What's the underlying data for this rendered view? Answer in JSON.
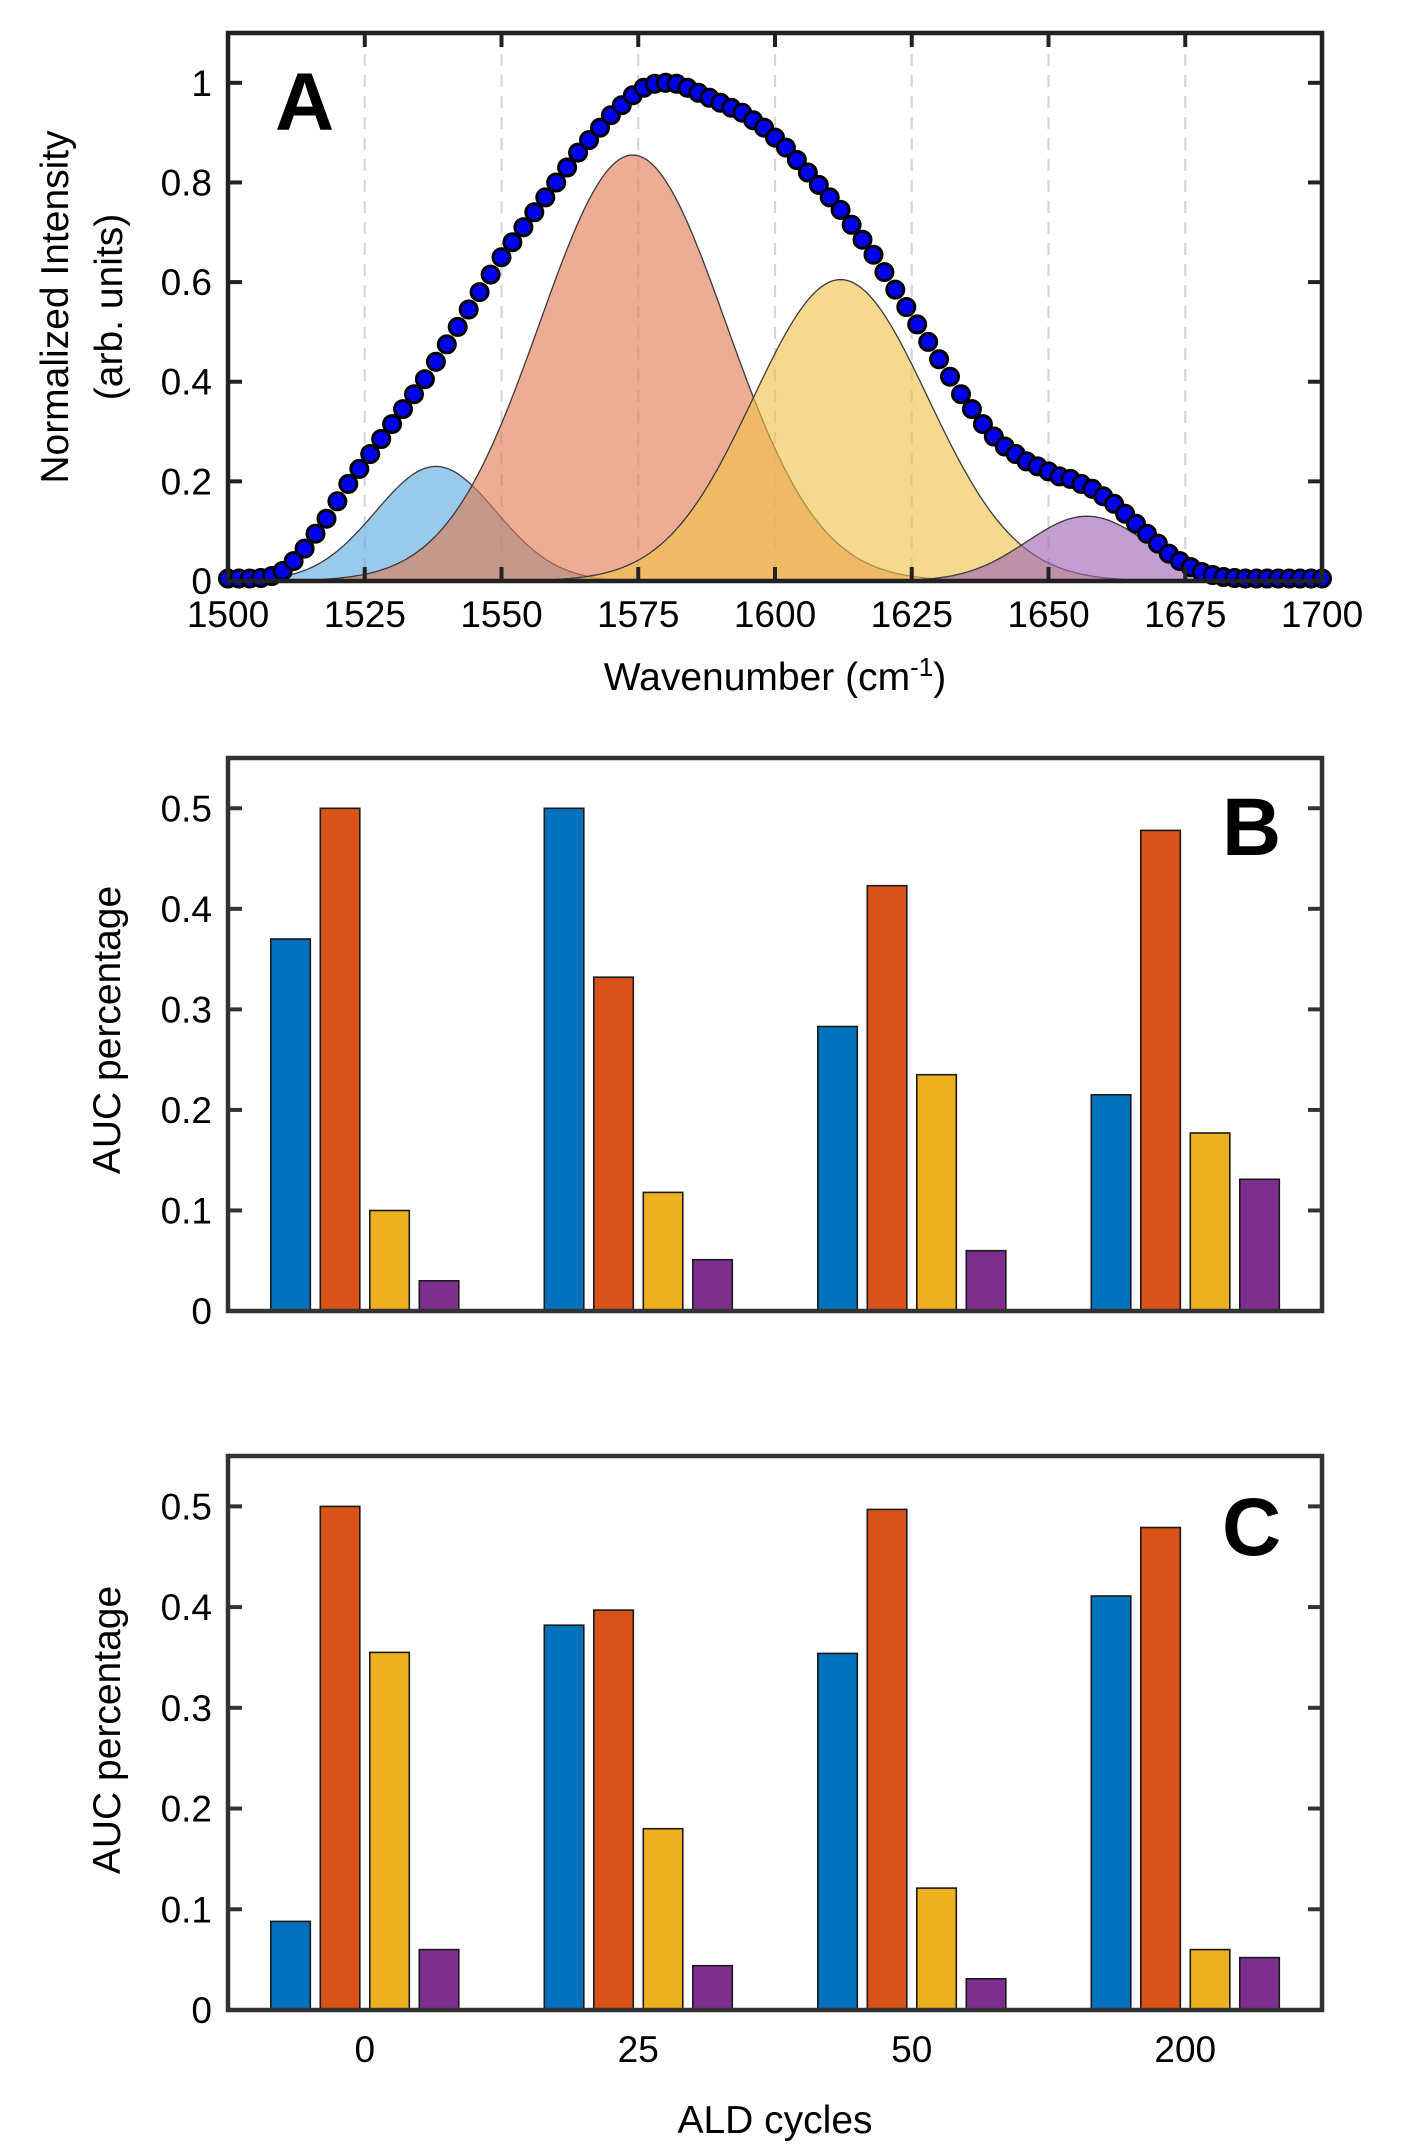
{
  "chart_data": [
    {
      "panel": "A",
      "type": "area",
      "panel_label": "A",
      "xlabel": "Wavenumber (cm",
      "xlabel_sup": "-1",
      "xlabel_tail": ")",
      "ylabel": "Normalized Intensity",
      "ylabel_2": "(arb. units)",
      "xlim": [
        1500,
        1700
      ],
      "ylim": [
        0,
        1.1
      ],
      "xticks": [
        1500,
        1525,
        1550,
        1575,
        1600,
        1625,
        1650,
        1675,
        1700
      ],
      "xtick_labels": [
        "1500",
        "1525",
        "1550",
        "1575",
        "1600",
        "1625",
        "1650",
        "1675",
        "1700"
      ],
      "yticks": [
        0,
        0.2,
        0.4,
        0.6,
        0.8,
        1
      ],
      "ytick_labels": [
        "0",
        "0.2",
        "0.4",
        "0.6",
        "0.8",
        "1"
      ],
      "grid": "dashed vertical lines at 1525, 1550, 1575, 1600, 1625, 1650, 1675",
      "components": [
        {
          "center": 1538,
          "amplitude": 0.23,
          "sigma": 11,
          "color": "#5ba8de"
        },
        {
          "center": 1574,
          "amplitude": 0.855,
          "sigma": 17,
          "color": "#e07a52"
        },
        {
          "center": 1612,
          "amplitude": 0.605,
          "sigma": 16,
          "color": "#f0c14a"
        },
        {
          "center": 1657,
          "amplitude": 0.13,
          "sigma": 11,
          "color": "#9d63b8"
        }
      ],
      "scatter": {
        "marker_color": "#0000f0",
        "marker_edge": "#000000",
        "x": [
          1500,
          1502,
          1504,
          1506,
          1508,
          1510,
          1512,
          1514,
          1516,
          1518,
          1520,
          1522,
          1524,
          1526,
          1528,
          1530,
          1532,
          1534,
          1536,
          1538,
          1540,
          1542,
          1544,
          1546,
          1548,
          1550,
          1552,
          1554,
          1556,
          1558,
          1560,
          1562,
          1564,
          1566,
          1568,
          1570,
          1572,
          1574,
          1576,
          1578,
          1580,
          1582,
          1584,
          1586,
          1588,
          1590,
          1592,
          1594,
          1596,
          1598,
          1600,
          1602,
          1604,
          1606,
          1608,
          1610,
          1612,
          1614,
          1616,
          1618,
          1620,
          1622,
          1624,
          1626,
          1628,
          1630,
          1632,
          1634,
          1636,
          1638,
          1640,
          1642,
          1644,
          1646,
          1648,
          1650,
          1652,
          1654,
          1656,
          1658,
          1660,
          1662,
          1664,
          1666,
          1668,
          1670,
          1672,
          1674,
          1676,
          1678,
          1680,
          1682,
          1684,
          1686,
          1688,
          1690,
          1692,
          1694,
          1696,
          1698,
          1700
        ],
        "y": [
          0.005,
          0.005,
          0.005,
          0.006,
          0.01,
          0.02,
          0.04,
          0.065,
          0.095,
          0.125,
          0.16,
          0.195,
          0.225,
          0.255,
          0.285,
          0.315,
          0.345,
          0.375,
          0.405,
          0.44,
          0.475,
          0.51,
          0.545,
          0.58,
          0.615,
          0.65,
          0.68,
          0.71,
          0.74,
          0.77,
          0.8,
          0.83,
          0.86,
          0.885,
          0.91,
          0.935,
          0.955,
          0.975,
          0.99,
          0.998,
          1.0,
          0.998,
          0.99,
          0.98,
          0.97,
          0.96,
          0.95,
          0.94,
          0.925,
          0.91,
          0.89,
          0.87,
          0.845,
          0.82,
          0.795,
          0.77,
          0.745,
          0.715,
          0.685,
          0.655,
          0.62,
          0.585,
          0.55,
          0.515,
          0.48,
          0.445,
          0.41,
          0.375,
          0.345,
          0.315,
          0.29,
          0.27,
          0.255,
          0.24,
          0.23,
          0.22,
          0.21,
          0.205,
          0.195,
          0.185,
          0.17,
          0.155,
          0.135,
          0.115,
          0.095,
          0.075,
          0.055,
          0.04,
          0.028,
          0.018,
          0.012,
          0.008,
          0.006,
          0.005,
          0.005,
          0.005,
          0.005,
          0.005,
          0.005,
          0.005,
          0.005
        ]
      }
    },
    {
      "panel": "B",
      "type": "bar",
      "panel_label": "B",
      "ylabel": "AUC percentage",
      "ylim": [
        0,
        0.55
      ],
      "yticks": [
        0,
        0.1,
        0.2,
        0.3,
        0.4,
        0.5
      ],
      "ytick_labels": [
        "0",
        "0.1",
        "0.2",
        "0.3",
        "0.4",
        "0.5"
      ],
      "categories": [
        "0",
        "25",
        "50",
        "200"
      ],
      "show_category_labels": false,
      "series": [
        {
          "color": "#0072bd",
          "values": [
            0.37,
            0.5,
            0.283,
            0.215
          ]
        },
        {
          "color": "#d95319",
          "values": [
            0.5,
            0.332,
            0.423,
            0.478
          ]
        },
        {
          "color": "#edb120",
          "values": [
            0.1,
            0.118,
            0.235,
            0.177
          ]
        },
        {
          "color": "#7e2f8e",
          "values": [
            0.03,
            0.051,
            0.06,
            0.131
          ]
        }
      ]
    },
    {
      "panel": "C",
      "type": "bar",
      "panel_label": "C",
      "ylabel": "AUC percentage",
      "xlabel": "ALD cycles",
      "ylim": [
        0,
        0.55
      ],
      "yticks": [
        0,
        0.1,
        0.2,
        0.3,
        0.4,
        0.5
      ],
      "ytick_labels": [
        "0",
        "0.1",
        "0.2",
        "0.3",
        "0.4",
        "0.5"
      ],
      "categories": [
        "0",
        "25",
        "50",
        "200"
      ],
      "show_category_labels": true,
      "series": [
        {
          "color": "#0072bd",
          "values": [
            0.088,
            0.382,
            0.354,
            0.411
          ]
        },
        {
          "color": "#d95319",
          "values": [
            0.5,
            0.397,
            0.497,
            0.479
          ]
        },
        {
          "color": "#edb120",
          "values": [
            0.355,
            0.18,
            0.121,
            0.06
          ]
        },
        {
          "color": "#7e2f8e",
          "values": [
            0.06,
            0.044,
            0.031,
            0.052
          ]
        }
      ]
    }
  ]
}
